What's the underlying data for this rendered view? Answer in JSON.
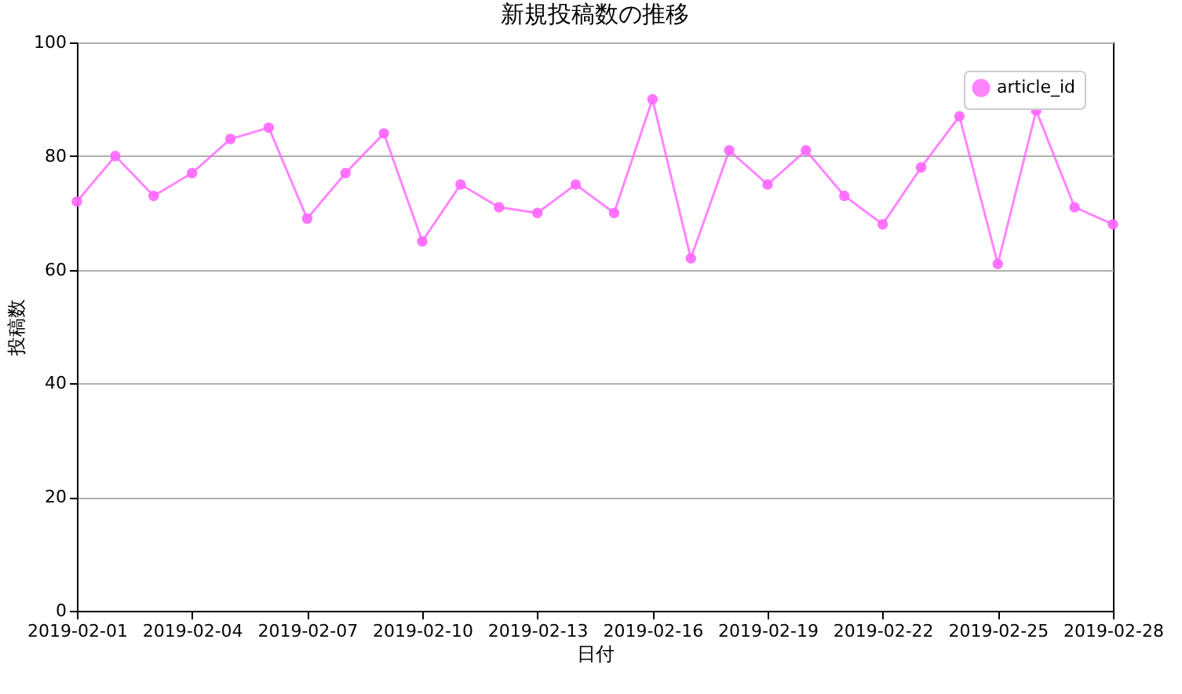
{
  "chart_data": {
    "type": "line",
    "title": "新規投稿数の推移",
    "xlabel": "日付",
    "ylabel": "投稿数",
    "x": [
      "2019-02-01",
      "2019-02-02",
      "2019-02-03",
      "2019-02-04",
      "2019-02-05",
      "2019-02-06",
      "2019-02-07",
      "2019-02-08",
      "2019-02-09",
      "2019-02-10",
      "2019-02-11",
      "2019-02-12",
      "2019-02-13",
      "2019-02-14",
      "2019-02-15",
      "2019-02-16",
      "2019-02-17",
      "2019-02-18",
      "2019-02-19",
      "2019-02-20",
      "2019-02-21",
      "2019-02-22",
      "2019-02-23",
      "2019-02-24",
      "2019-02-25",
      "2019-02-26",
      "2019-02-27",
      "2019-02-28"
    ],
    "series": [
      {
        "name": "article_id",
        "color": "#ff66ff",
        "values": [
          72,
          80,
          73,
          77,
          83,
          85,
          69,
          77,
          84,
          65,
          75,
          71,
          70,
          75,
          70,
          90,
          62,
          81,
          75,
          81,
          73,
          68,
          78,
          87,
          61,
          88,
          71,
          68
        ]
      }
    ],
    "xlim": [
      "2019-02-01",
      "2019-02-28"
    ],
    "xticks": [
      "2019-02-01",
      "2019-02-04",
      "2019-02-07",
      "2019-02-10",
      "2019-02-13",
      "2019-02-16",
      "2019-02-19",
      "2019-02-22",
      "2019-02-25",
      "2019-02-28"
    ],
    "ylim": [
      0,
      100
    ],
    "yticks": [
      0,
      20,
      40,
      60,
      80,
      100
    ],
    "grid": "y",
    "legend": "top right",
    "marker": "circle",
    "line_style": "solid"
  }
}
